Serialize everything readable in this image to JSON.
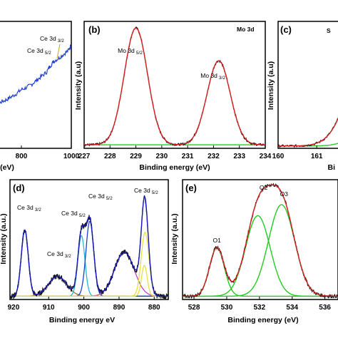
{
  "chart_data": [
    {
      "panel": "",
      "type": "line",
      "xlabel": "(eV)",
      "ylabel": "",
      "x_ticks": [
        "800",
        "1000"
      ],
      "xlim": [
        600,
        1000
      ],
      "x_reversed": false,
      "annotations": [
        {
          "text": "Ce 3d",
          "sub": "3/2"
        },
        {
          "text": "Ce 3d",
          "sub": "5/2"
        }
      ],
      "series": [
        {
          "color": "#1f3fd1",
          "x": [
            640,
            660,
            680,
            700,
            720,
            740,
            760,
            780,
            800,
            820,
            840,
            860,
            880,
            900,
            915,
            930,
            950,
            970,
            990,
            1000
          ],
          "y": [
            0.3,
            0.33,
            0.37,
            0.4,
            0.43,
            0.45,
            0.48,
            0.51,
            0.55,
            0.57,
            0.6,
            0.64,
            0.68,
            0.72,
            0.78,
            0.83,
            0.86,
            0.9,
            0.94,
            1.0
          ]
        }
      ]
    },
    {
      "panel": "(b)",
      "type": "line",
      "xlabel": "Binding energy (eV)",
      "ylabel": "Intensity (a.u)",
      "corner_label": "Mo 3d",
      "x_ticks": [
        "227",
        "228",
        "229",
        "230",
        "231",
        "232",
        "233",
        "234"
      ],
      "xlim": [
        227,
        234
      ],
      "x_reversed": false,
      "annotations": [
        {
          "text": "Mo 3d",
          "sub": "5/2",
          "x": 229.0
        },
        {
          "text": "Mo 3d",
          "sub": "3/2",
          "x": 232.2
        }
      ],
      "peaks": [
        {
          "center": 229.0,
          "height": 1.0,
          "width": 0.45
        },
        {
          "center": 232.2,
          "height": 0.72,
          "width": 0.45
        }
      ],
      "baseline": 0.03,
      "colors": {
        "data": "#111111",
        "fit": "#d42020",
        "baseline": "#22cc22"
      }
    },
    {
      "panel": "(c)",
      "type": "line",
      "xlabel": "Bi",
      "ylabel": "Intensity (a.u)",
      "corner_label": "S",
      "x_ticks": [
        "160",
        "161"
      ],
      "xlim": [
        160,
        162.4
      ],
      "x_reversed": false,
      "colors": {
        "data": "#111111",
        "fit": "#d42020",
        "component": "#22cc22"
      }
    },
    {
      "panel": "(d)",
      "type": "line",
      "xlabel": "Binding energy eV",
      "ylabel": "Intensity (a.u.)",
      "x_ticks": [
        "920",
        "910",
        "900",
        "890",
        "880"
      ],
      "xlim": [
        921,
        876
      ],
      "x_reversed": true,
      "annotations": [
        {
          "text": "Ce 3d",
          "sub": "3/2"
        },
        {
          "text": "Ce 3d",
          "sub": "3/2"
        },
        {
          "text": "Ce 3d",
          "sub": "5/2"
        },
        {
          "text": "Ce 3d",
          "sub": "5/2"
        },
        {
          "text": "Ce 3d",
          "sub": "5/2"
        }
      ],
      "peaks": [
        {
          "center": 916.8,
          "height": 0.6,
          "width": 1.0,
          "color": "#1a2bd6"
        },
        {
          "center": 907.5,
          "height": 0.18,
          "width": 2.6,
          "color": "#a06a3a"
        },
        {
          "center": 900.7,
          "height": 0.55,
          "width": 1.0,
          "color": "#20b8d8"
        },
        {
          "center": 898.3,
          "height": 0.68,
          "width": 1.1,
          "color": "#1a3fd6"
        },
        {
          "center": 888.5,
          "height": 0.4,
          "width": 2.8,
          "color": "#c040d0"
        },
        {
          "center": 882.6,
          "height": 0.58,
          "width": 1.1,
          "color": "#e8e040"
        },
        {
          "center": 882.8,
          "height": 0.28,
          "width": 0.8,
          "color": "#e8e040"
        }
      ],
      "baseline": 0.03,
      "colors": {
        "data": "#111111",
        "fit": "#1a1ab8",
        "baseline": "#22cc22"
      }
    },
    {
      "panel": "(e)",
      "type": "line",
      "xlabel": "Binding energy (eV)",
      "ylabel": "Intensity (a.u.)",
      "x_ticks": [
        "528",
        "530",
        "532",
        "534",
        "536"
      ],
      "xlim": [
        527.3,
        536.8
      ],
      "x_reversed": false,
      "annotations": [
        {
          "text": "O1",
          "x": 529.4
        },
        {
          "text": "O2",
          "x": 532.2
        },
        {
          "text": "O3",
          "x": 533.4
        }
      ],
      "peaks": [
        {
          "center": 529.4,
          "height": 0.44,
          "width": 0.45
        },
        {
          "center": 531.9,
          "height": 0.73,
          "width": 0.75
        },
        {
          "center": 533.35,
          "height": 0.83,
          "width": 0.8
        }
      ],
      "baseline": 0.03,
      "colors": {
        "data": "#111111",
        "fit": "#d42020",
        "component": "#22cc22"
      }
    }
  ]
}
